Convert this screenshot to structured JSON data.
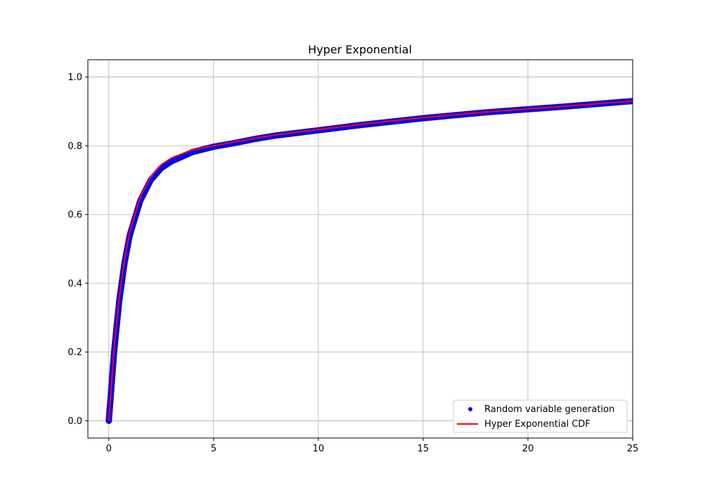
{
  "chart_data": {
    "type": "line",
    "title": "Hyper Exponential",
    "xlabel": "",
    "ylabel": "",
    "xlim": [
      -1,
      25
    ],
    "ylim": [
      -0.05,
      1.05
    ],
    "x_ticks": [
      0,
      5,
      10,
      15,
      20,
      25
    ],
    "x_tick_labels": [
      "0",
      "5",
      "10",
      "15",
      "20",
      "25"
    ],
    "y_ticks": [
      0.0,
      0.2,
      0.4,
      0.6,
      0.8,
      1.0
    ],
    "y_tick_labels": [
      "0.0",
      "0.2",
      "0.4",
      "0.6",
      "0.8",
      "1.0"
    ],
    "grid": true,
    "legend_position": "lower-right",
    "series": [
      {
        "name": "Random variable generation",
        "kind": "scatter",
        "color": "#0000ff",
        "x": [
          0,
          0.25,
          0.5,
          0.75,
          1.0,
          1.5,
          2.0,
          2.5,
          3.0,
          4.0,
          5.0,
          6.0,
          7.0,
          8.0,
          10.0,
          12.0,
          15.0,
          18.0,
          20.0,
          22.0,
          25.0
        ],
        "y": [
          0.0,
          0.2,
          0.35,
          0.46,
          0.54,
          0.64,
          0.7,
          0.735,
          0.755,
          0.782,
          0.797,
          0.808,
          0.82,
          0.83,
          0.845,
          0.86,
          0.88,
          0.897,
          0.906,
          0.915,
          0.93
        ]
      },
      {
        "name": "Hyper Exponential CDF",
        "kind": "line",
        "color": "#ff0000",
        "x": [
          0,
          0.25,
          0.5,
          0.75,
          1.0,
          1.5,
          2.0,
          2.5,
          3.0,
          4.0,
          5.0,
          6.0,
          7.0,
          8.0,
          10.0,
          12.0,
          15.0,
          18.0,
          20.0,
          22.0,
          25.0
        ],
        "y": [
          0.0,
          0.21,
          0.36,
          0.47,
          0.55,
          0.65,
          0.71,
          0.745,
          0.765,
          0.788,
          0.8,
          0.811,
          0.822,
          0.832,
          0.847,
          0.862,
          0.882,
          0.898,
          0.907,
          0.916,
          0.93
        ]
      }
    ]
  }
}
